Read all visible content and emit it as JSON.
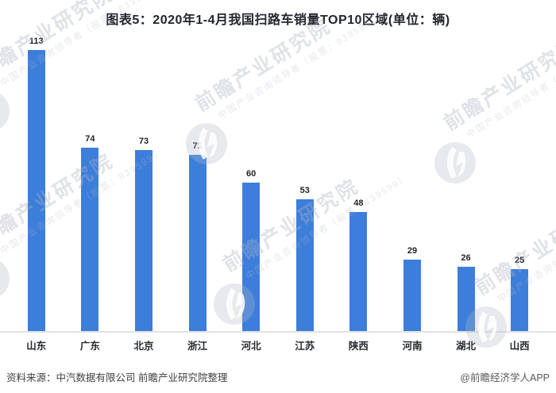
{
  "title": "图表5：2020年1-4月我国扫路车销量TOP10区域(单位：辆)",
  "chart_data": {
    "type": "bar",
    "title": "图表5：2020年1-4月我国扫路车销量TOP10区域(单位：辆)",
    "categories": [
      "山东",
      "广东",
      "北京",
      "浙江",
      "河北",
      "江苏",
      "陕西",
      "河南",
      "湖北",
      "山西"
    ],
    "values": [
      113,
      74,
      73,
      71,
      60,
      53,
      48,
      29,
      26,
      25
    ],
    "unit": "辆",
    "xlabel": "",
    "ylabel": "",
    "ylim": [
      0,
      120
    ],
    "grid": false,
    "legend": false,
    "data_labels": true,
    "bar_color": "#3d7edb"
  },
  "watermark": {
    "main": "前瞻产业研究院",
    "sub": "中国产业咨询领导者（股票：839599）"
  },
  "footer": {
    "source": "资料来源：中汽数据有限公司 前瞻产业研究院整理",
    "credit": "@前瞻经济学人APP"
  },
  "colors": {
    "bar": "#3d7edb",
    "title_text": "#23262e",
    "label_text": "#26292e",
    "axis_line": "#e2e3e6",
    "source_text": "#404040",
    "credit_text": "#595959"
  }
}
